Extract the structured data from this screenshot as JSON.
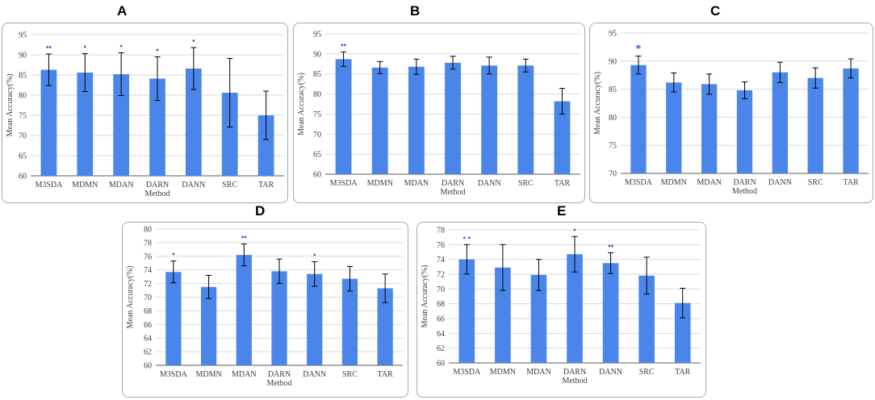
{
  "chart_data": [
    {
      "type": "bar",
      "panel": "A",
      "categories": [
        "M3SDA",
        "MDMN",
        "MDAN",
        "DARN",
        "DANN",
        "SRC",
        "TAR"
      ],
      "values": [
        86.3,
        85.6,
        85.2,
        84.1,
        86.6,
        80.6,
        75.0
      ],
      "errors": [
        3.9,
        4.7,
        5.3,
        5.4,
        5.2,
        8.5,
        6.0
      ],
      "markers": [
        "••",
        "•",
        "•",
        "•",
        "•",
        "",
        ""
      ],
      "ylim": [
        60,
        95
      ],
      "yticks": [
        60,
        65,
        70,
        75,
        80,
        85,
        90,
        95
      ],
      "xlabel": "Method",
      "ylabel": "Mean Accuracy(%)"
    },
    {
      "type": "bar",
      "panel": "B",
      "categories": [
        "M3SDA",
        "MDMN",
        "MDAN",
        "DARN",
        "DANN",
        "SRC",
        "TAR"
      ],
      "values": [
        88.7,
        86.6,
        86.8,
        87.8,
        87.1,
        87.1,
        78.2
      ],
      "errors": [
        1.8,
        1.5,
        1.9,
        1.6,
        2.1,
        1.6,
        3.2
      ],
      "markers": [
        "••",
        "",
        "",
        "",
        "",
        "",
        ""
      ],
      "ylim": [
        60,
        95
      ],
      "yticks": [
        60,
        65,
        70,
        75,
        80,
        85,
        90,
        95
      ],
      "xlabel": "Method",
      "ylabel": "Mean Accuracy(%)"
    },
    {
      "type": "bar",
      "panel": "C",
      "categories": [
        "M3SDA",
        "MDMN",
        "MDAN",
        "DARN",
        "DANN",
        "SRC",
        "TAR"
      ],
      "values": [
        89.3,
        86.2,
        85.9,
        84.8,
        88.0,
        87.0,
        88.7
      ],
      "errors": [
        1.6,
        1.7,
        1.8,
        1.5,
        1.8,
        1.8,
        1.7
      ],
      "markers": [
        "*",
        "",
        "",
        "",
        "",
        "",
        ""
      ],
      "ylim": [
        70,
        95
      ],
      "yticks": [
        70,
        75,
        80,
        85,
        90,
        95
      ],
      "xlabel": "Method",
      "ylabel": "Mean Accuracy(%)"
    },
    {
      "type": "bar",
      "panel": "D",
      "categories": [
        "M3SDA",
        "MDMN",
        "MDAN",
        "DARN",
        "DANN",
        "SRC",
        "TAR"
      ],
      "values": [
        73.7,
        71.5,
        76.2,
        73.8,
        73.4,
        72.7,
        71.3
      ],
      "errors": [
        1.6,
        1.7,
        1.6,
        1.8,
        1.8,
        1.8,
        2.1
      ],
      "markers": [
        "•",
        "",
        "••",
        "",
        "•",
        "",
        ""
      ],
      "ylim": [
        60,
        80
      ],
      "yticks": [
        60,
        62,
        64,
        66,
        68,
        70,
        72,
        74,
        76,
        78,
        80
      ],
      "xlabel": "Method",
      "ylabel": "Mean Accuracy(%)"
    },
    {
      "type": "bar",
      "panel": "E",
      "categories": [
        "M3SDA",
        "MDMN",
        "MDAN",
        "DARN",
        "DANN",
        "SRC",
        "TAR"
      ],
      "values": [
        74.0,
        72.9,
        71.9,
        74.7,
        73.5,
        71.8,
        68.1
      ],
      "errors": [
        2.0,
        3.1,
        2.1,
        2.4,
        1.4,
        2.5,
        2.0
      ],
      "markers": [
        "• •",
        "",
        "",
        "•",
        "••",
        "",
        ""
      ],
      "ylim": [
        60,
        78
      ],
      "yticks": [
        60,
        62,
        64,
        66,
        68,
        70,
        72,
        74,
        76,
        78
      ],
      "xlabel": "Method",
      "ylabel": "Mean Accuracy(%)"
    }
  ],
  "colors": {
    "bar": "#4a86ea",
    "marker": "#2f5fbf",
    "grid": "#d9d9d9",
    "axis": "#595959"
  }
}
